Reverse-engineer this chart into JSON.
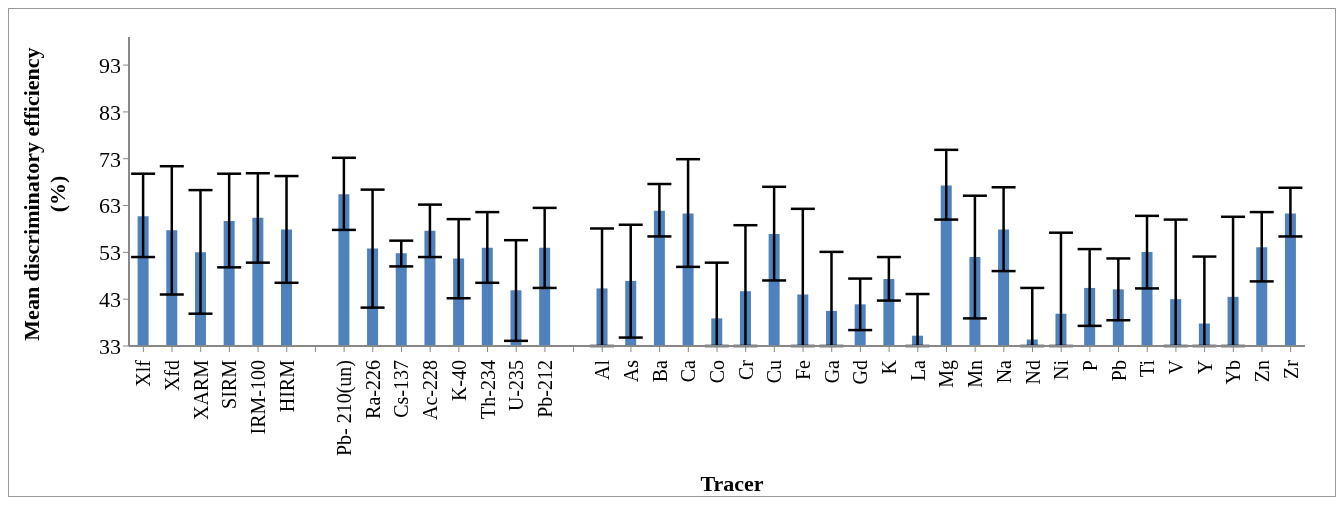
{
  "chart_data": {
    "type": "bar",
    "xlabel": "Tracer",
    "ylabel": "Mean discriminatory efficiency (%)",
    "categories": [
      "Xlf",
      "Xfd",
      "XARM",
      "SIRM",
      "IRM-100",
      "HIRM",
      null,
      "Pb- 210(un)",
      "Ra-226",
      "Cs-137",
      "Ac-228",
      "K-40",
      "Th-234",
      "U-235",
      "Pb-212",
      null,
      "Al",
      "As",
      "Ba",
      "Ca",
      "Co",
      "Cr",
      "Cu",
      "Fe",
      "Ga",
      "Gd",
      "K",
      "La",
      "Mg",
      "Mn",
      "Na",
      "Nd",
      "Ni",
      "P",
      "Pb",
      "Ti",
      "V",
      "Y",
      "Yb",
      "Zn",
      "Zr"
    ],
    "values": [
      60.7,
      57.7,
      53.0,
      59.7,
      60.4,
      57.9,
      null,
      65.4,
      53.8,
      52.8,
      57.6,
      51.7,
      54.0,
      44.9,
      54.0,
      null,
      45.3,
      46.9,
      61.9,
      61.3,
      38.9,
      44.7,
      56.9,
      44.0,
      40.5,
      41.9,
      47.3,
      35.2,
      67.3,
      52.0,
      57.9,
      34.4,
      39.9,
      45.4,
      45.1,
      53.1,
      43.0,
      37.8,
      43.5,
      54.1,
      61.3
    ],
    "errors": [
      [
        52.0,
        69.8
      ],
      [
        44.0,
        71.4
      ],
      [
        39.9,
        66.3
      ],
      [
        49.8,
        69.8
      ],
      [
        50.8,
        69.9
      ],
      [
        46.5,
        69.3
      ],
      null,
      [
        57.8,
        73.2
      ],
      [
        41.2,
        66.4
      ],
      [
        50.0,
        55.5
      ],
      [
        52.0,
        63.2
      ],
      [
        43.2,
        60.1
      ],
      [
        46.5,
        61.6
      ],
      [
        34.1,
        55.6
      ],
      [
        45.4,
        62.5
      ],
      null,
      [
        33,
        58.1
      ],
      [
        34.8,
        58.9
      ],
      [
        56.4,
        67.6
      ],
      [
        49.9,
        72.9
      ],
      [
        33,
        50.8
      ],
      [
        33,
        58.8
      ],
      [
        47.0,
        67.0
      ],
      [
        33,
        62.3
      ],
      [
        33,
        53.1
      ],
      [
        36.4,
        47.4
      ],
      [
        42.7,
        52.0
      ],
      [
        33,
        44.1
      ],
      [
        60.0,
        74.9
      ],
      [
        38.9,
        65.1
      ],
      [
        49.0,
        66.9
      ],
      [
        33,
        45.4
      ],
      [
        33,
        57.2
      ],
      [
        37.3,
        53.7
      ],
      [
        38.5,
        51.7
      ],
      [
        45.3,
        60.8
      ],
      [
        33,
        60.0
      ],
      [
        33,
        52.1
      ],
      [
        33,
        60.6
      ],
      [
        46.8,
        61.6
      ],
      [
        56.4,
        66.8
      ]
    ],
    "color": "#4f81bd",
    "ylim": [
      33,
      99
    ],
    "yticks": [
      33,
      43,
      53,
      63,
      73,
      83,
      93
    ],
    "grid": false,
    "legend": false
  }
}
